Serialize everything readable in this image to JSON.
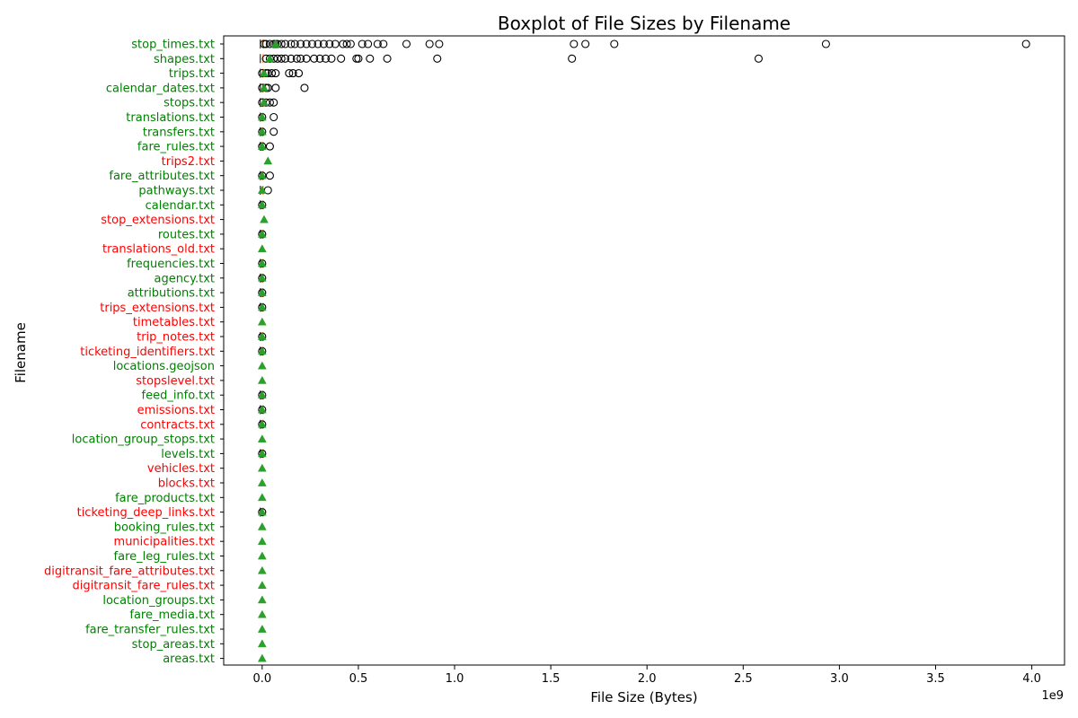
{
  "colors": {
    "standard_label": "#008000",
    "nonstandard_label": "#ff0000",
    "mean_marker": "#2ca02c",
    "outlier_edge": "#000000",
    "median": "#ff7f0e"
  },
  "chart_data": {
    "type": "boxplot",
    "orientation": "horizontal",
    "title": "Boxplot of File Sizes by Filename",
    "xlabel": "File Size (Bytes)",
    "ylabel": "Filename",
    "x_offset_text": "1e9",
    "xlim": [
      -0.2,
      4.17
    ],
    "x_unit_multiplier": 1000000000.0,
    "x_ticks": [
      0.0,
      0.5,
      1.0,
      1.5,
      2.0,
      2.5,
      3.0,
      3.5,
      4.0
    ],
    "x_tick_labels": [
      "0.0",
      "0.5",
      "1.0",
      "1.5",
      "2.0",
      "2.5",
      "3.0",
      "3.5",
      "4.0"
    ],
    "grid": false,
    "items": [
      {
        "label": "stop_times.txt",
        "standard": true,
        "mean": 0.07,
        "outliers": [
          0.01,
          0.02,
          0.04,
          0.06,
          0.07,
          0.08,
          0.1,
          0.12,
          0.15,
          0.17,
          0.2,
          0.23,
          0.26,
          0.29,
          0.32,
          0.35,
          0.38,
          0.42,
          0.44,
          0.46,
          0.52,
          0.55,
          0.6,
          0.63,
          0.75,
          0.87,
          0.92,
          1.62,
          1.68,
          1.83,
          2.93,
          3.97
        ]
      },
      {
        "label": "shapes.txt",
        "standard": true,
        "mean": 0.04,
        "outliers": [
          0.02,
          0.04,
          0.06,
          0.08,
          0.1,
          0.12,
          0.15,
          0.18,
          0.2,
          0.23,
          0.27,
          0.3,
          0.33,
          0.36,
          0.41,
          0.49,
          0.5,
          0.56,
          0.65,
          0.91,
          1.61,
          2.58
        ]
      },
      {
        "label": "trips.txt",
        "standard": true,
        "mean": 0.01,
        "outliers": [
          0.0,
          0.02,
          0.03,
          0.05,
          0.07,
          0.14,
          0.16,
          0.19
        ]
      },
      {
        "label": "calendar_dates.txt",
        "standard": true,
        "mean": 0.01,
        "outliers": [
          0.0,
          0.02,
          0.03,
          0.07,
          0.22
        ]
      },
      {
        "label": "stops.txt",
        "standard": true,
        "mean": 0.01,
        "outliers": [
          0.0,
          0.02,
          0.04,
          0.06
        ]
      },
      {
        "label": "translations.txt",
        "standard": true,
        "mean": 0.0,
        "outliers": [
          0.0,
          0.06
        ]
      },
      {
        "label": "transfers.txt",
        "standard": true,
        "mean": 0.0,
        "outliers": [
          0.0,
          0.06
        ]
      },
      {
        "label": "fare_rules.txt",
        "standard": true,
        "mean": 0.0,
        "outliers": [
          0.0,
          0.04
        ]
      },
      {
        "label": "trips2.txt",
        "standard": false,
        "mean": 0.03,
        "outliers": []
      },
      {
        "label": "fare_attributes.txt",
        "standard": true,
        "mean": 0.0,
        "outliers": [
          0.0,
          0.04
        ]
      },
      {
        "label": "pathways.txt",
        "standard": true,
        "mean": 0.0,
        "outliers": [
          0.03
        ]
      },
      {
        "label": "calendar.txt",
        "standard": true,
        "mean": 0.0,
        "outliers": [
          0.0
        ]
      },
      {
        "label": "stop_extensions.txt",
        "standard": false,
        "mean": 0.01,
        "outliers": []
      },
      {
        "label": "routes.txt",
        "standard": true,
        "mean": 0.0,
        "outliers": [
          0.0
        ]
      },
      {
        "label": "translations_old.txt",
        "standard": false,
        "mean": 0.0,
        "outliers": []
      },
      {
        "label": "frequencies.txt",
        "standard": true,
        "mean": 0.0,
        "outliers": [
          0.0
        ]
      },
      {
        "label": "agency.txt",
        "standard": true,
        "mean": 0.0,
        "outliers": [
          0.0
        ]
      },
      {
        "label": "attributions.txt",
        "standard": true,
        "mean": 0.0,
        "outliers": [
          0.0
        ]
      },
      {
        "label": "trips_extensions.txt",
        "standard": false,
        "mean": 0.0,
        "outliers": [
          0.0
        ]
      },
      {
        "label": "timetables.txt",
        "standard": false,
        "mean": 0.0,
        "outliers": []
      },
      {
        "label": "trip_notes.txt",
        "standard": false,
        "mean": 0.0,
        "outliers": [
          0.0
        ]
      },
      {
        "label": "ticketing_identifiers.txt",
        "standard": false,
        "mean": 0.0,
        "outliers": [
          0.0
        ]
      },
      {
        "label": "locations.geojson",
        "standard": true,
        "mean": 0.0,
        "outliers": []
      },
      {
        "label": "stopslevel.txt",
        "standard": false,
        "mean": 0.0,
        "outliers": []
      },
      {
        "label": "feed_info.txt",
        "standard": true,
        "mean": 0.0,
        "outliers": [
          0.0
        ]
      },
      {
        "label": "emissions.txt",
        "standard": false,
        "mean": 0.0,
        "outliers": [
          0.0
        ]
      },
      {
        "label": "contracts.txt",
        "standard": false,
        "mean": 0.0,
        "outliers": [
          0.0
        ]
      },
      {
        "label": "location_group_stops.txt",
        "standard": true,
        "mean": 0.0,
        "outliers": []
      },
      {
        "label": "levels.txt",
        "standard": true,
        "mean": 0.0,
        "outliers": [
          0.0
        ]
      },
      {
        "label": "vehicles.txt",
        "standard": false,
        "mean": 0.0,
        "outliers": []
      },
      {
        "label": "blocks.txt",
        "standard": false,
        "mean": 0.0,
        "outliers": []
      },
      {
        "label": "fare_products.txt",
        "standard": true,
        "mean": 0.0,
        "outliers": []
      },
      {
        "label": "ticketing_deep_links.txt",
        "standard": false,
        "mean": 0.0,
        "outliers": [
          0.0
        ]
      },
      {
        "label": "booking_rules.txt",
        "standard": true,
        "mean": 0.0,
        "outliers": []
      },
      {
        "label": "municipalities.txt",
        "standard": false,
        "mean": 0.0,
        "outliers": []
      },
      {
        "label": "fare_leg_rules.txt",
        "standard": true,
        "mean": 0.0,
        "outliers": []
      },
      {
        "label": "digitransit_fare_attributes.txt",
        "standard": false,
        "mean": 0.0,
        "outliers": []
      },
      {
        "label": "digitransit_fare_rules.txt",
        "standard": false,
        "mean": 0.0,
        "outliers": []
      },
      {
        "label": "location_groups.txt",
        "standard": true,
        "mean": 0.0,
        "outliers": []
      },
      {
        "label": "fare_media.txt",
        "standard": true,
        "mean": 0.0,
        "outliers": []
      },
      {
        "label": "fare_transfer_rules.txt",
        "standard": true,
        "mean": 0.0,
        "outliers": []
      },
      {
        "label": "stop_areas.txt",
        "standard": true,
        "mean": 0.0,
        "outliers": []
      },
      {
        "label": "areas.txt",
        "standard": true,
        "mean": 0.0,
        "outliers": []
      }
    ]
  }
}
